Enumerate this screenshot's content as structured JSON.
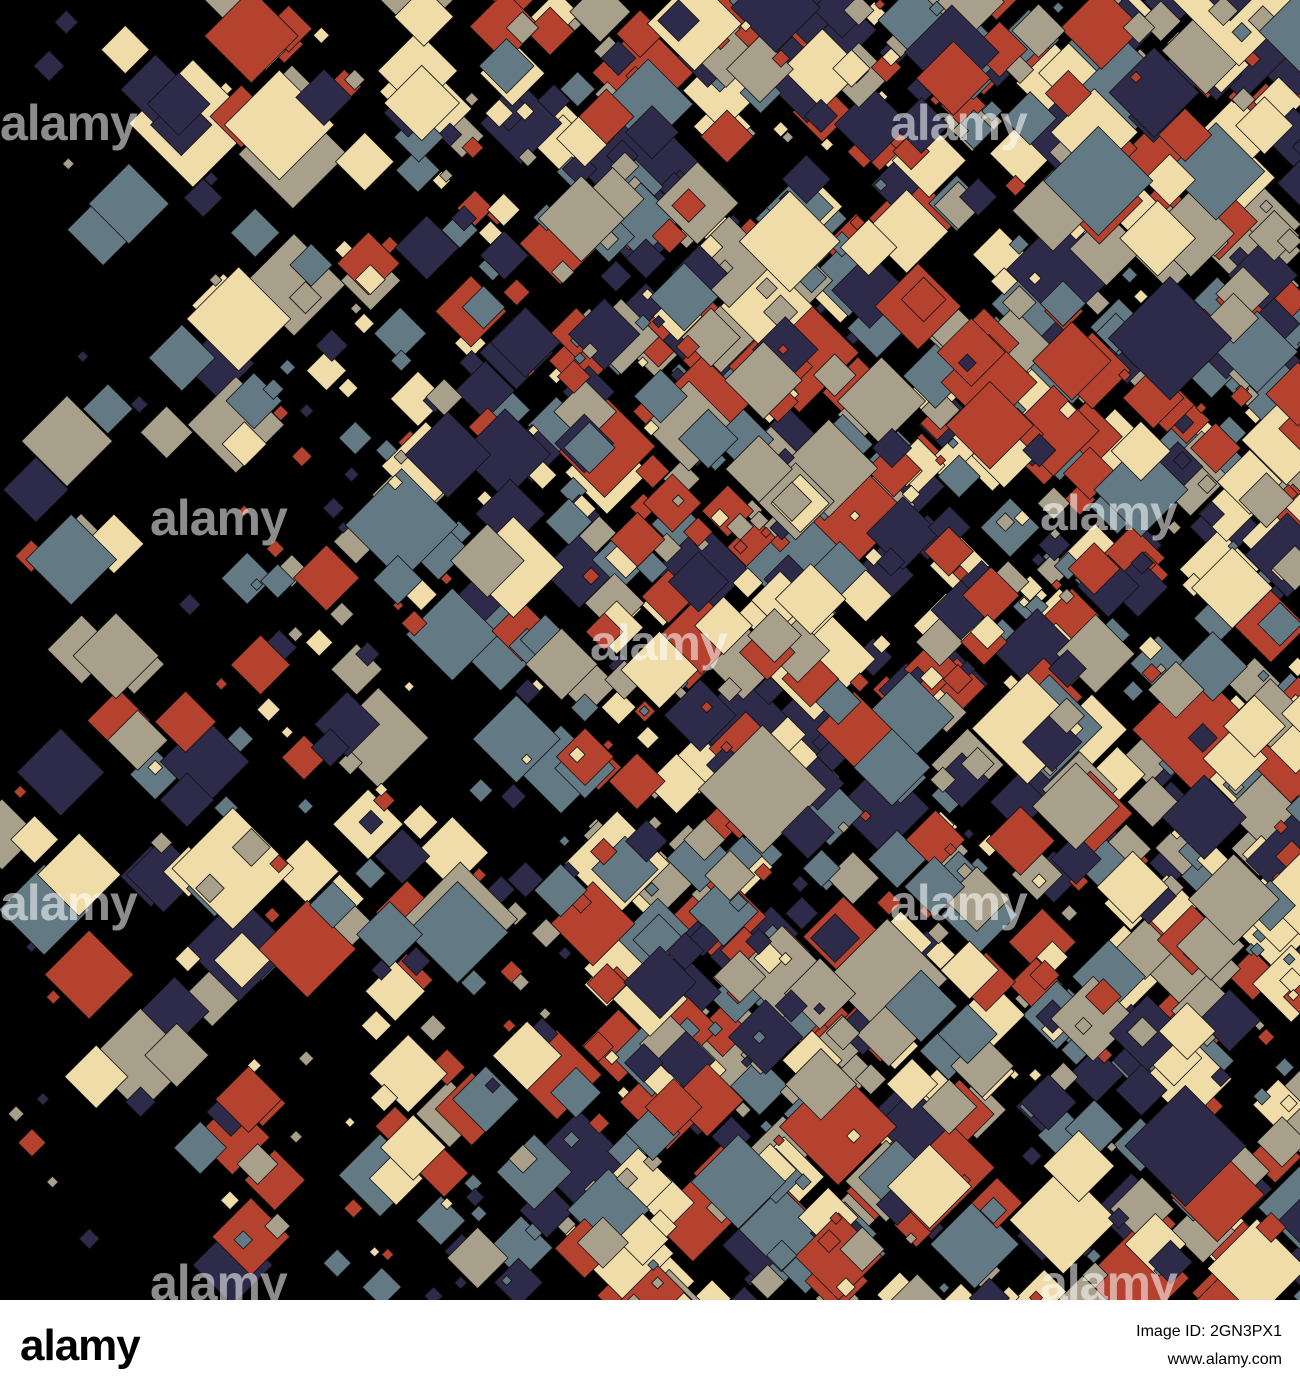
{
  "watermark": "alamy",
  "footer": {
    "logo": "alamy",
    "image_id": "Image ID: 2GN3PX1",
    "url": "www.alamy.com"
  }
}
